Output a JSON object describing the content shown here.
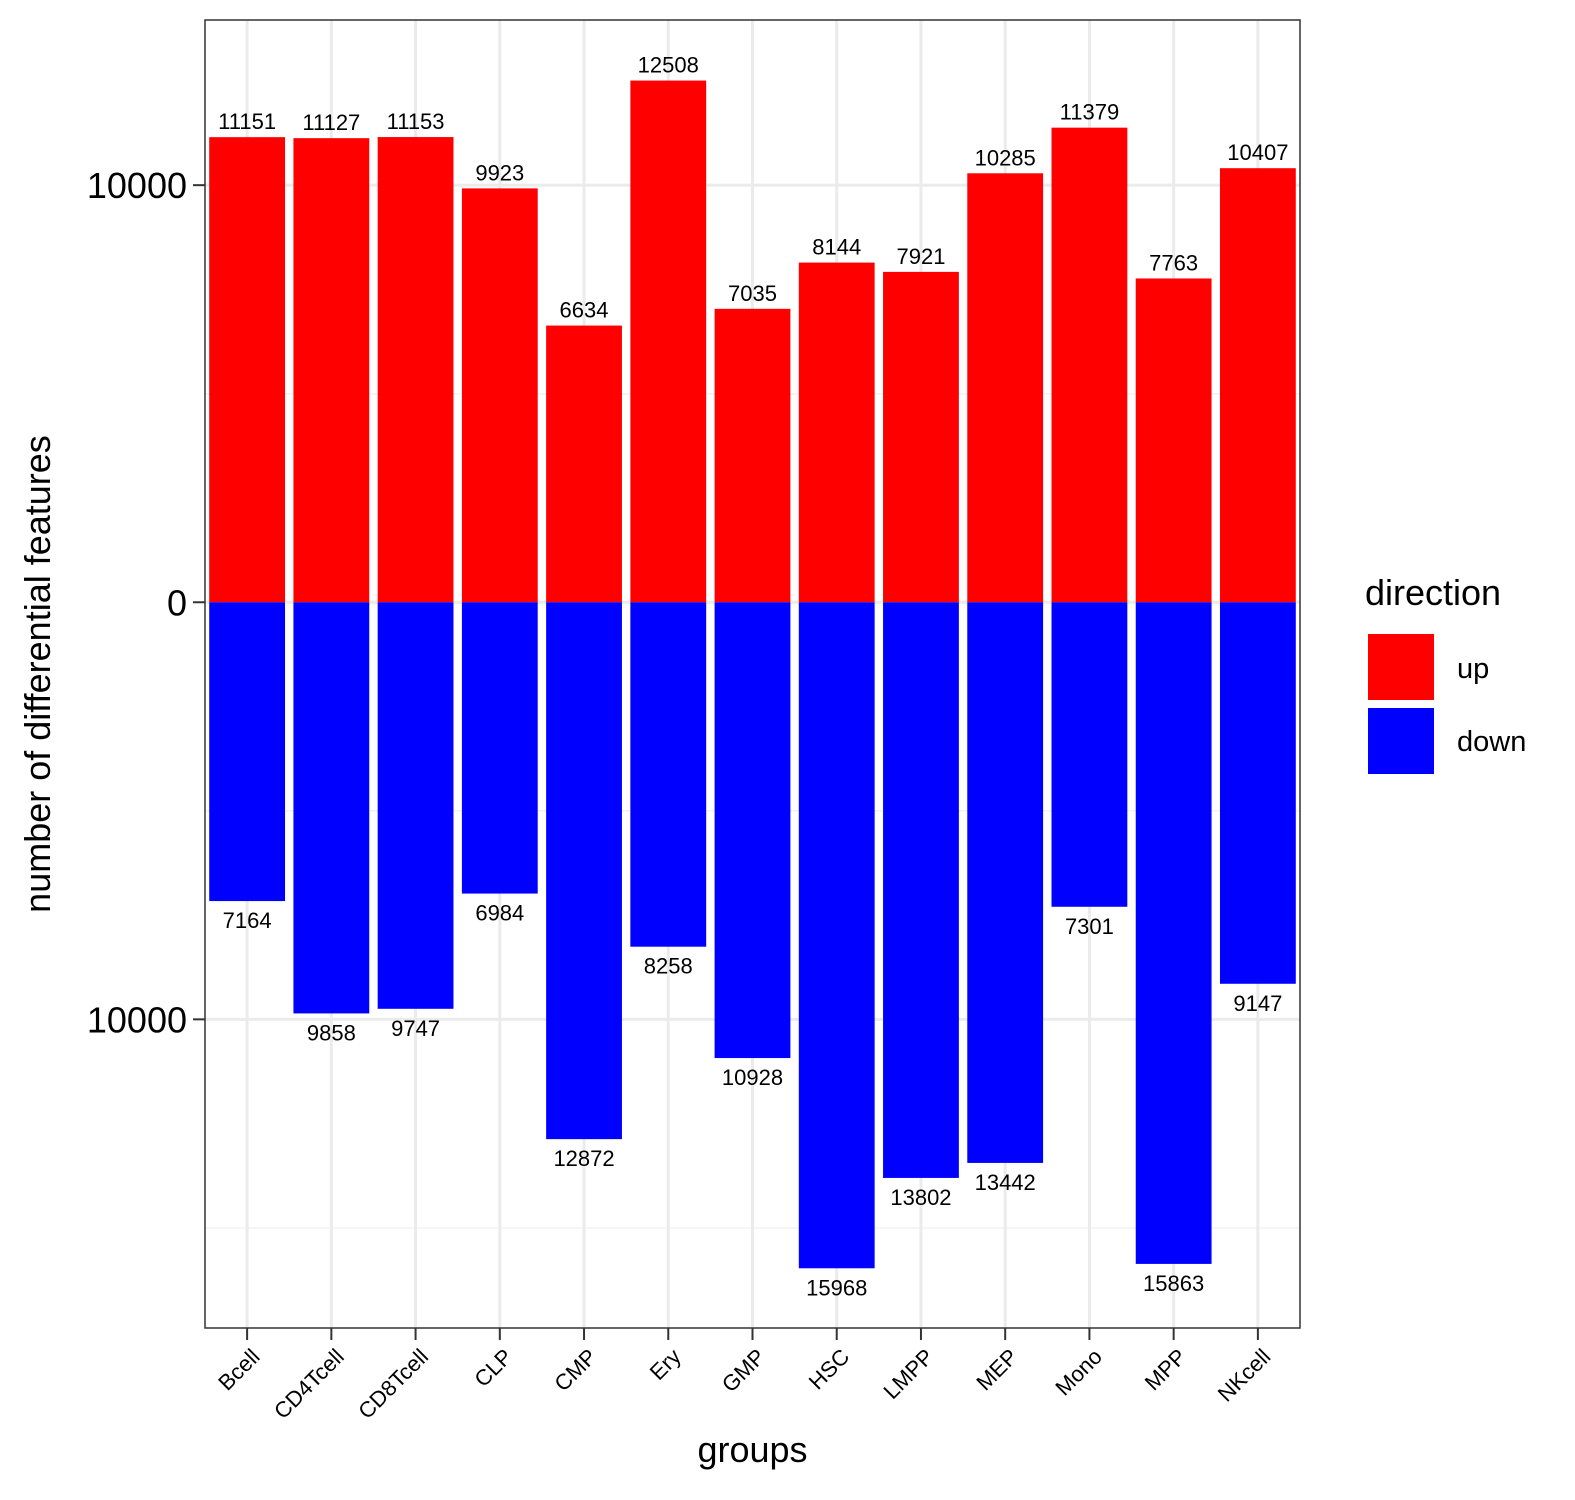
{
  "chart_data": {
    "type": "bar",
    "diverging": true,
    "title": "",
    "xlabel": "groups",
    "ylabel": "number of differential features",
    "categories": [
      "Bcell",
      "CD4Tcell",
      "CD8Tcell",
      "CLP",
      "CMP",
      "Ery",
      "GMP",
      "HSC",
      "LMPP",
      "MEP",
      "Mono",
      "MPP",
      "NKcell"
    ],
    "series": [
      {
        "name": "up",
        "color": "#ff0000",
        "direction": "positive",
        "values": [
          11151,
          11127,
          11153,
          9923,
          6634,
          12508,
          7035,
          8144,
          7921,
          10285,
          11379,
          7763,
          10407
        ]
      },
      {
        "name": "down",
        "color": "#0000ff",
        "direction": "negative",
        "values": [
          7164,
          9858,
          9747,
          6984,
          12872,
          8258,
          10928,
          15968,
          13802,
          13442,
          7301,
          15863,
          9147
        ]
      }
    ],
    "ylim": [
      -17400,
      13960
    ],
    "yticks": [
      {
        "value": 10000,
        "label": "10000"
      },
      {
        "value": 0,
        "label": "0"
      },
      {
        "value": -10000,
        "label": "10000"
      }
    ],
    "minor_gridlines": [
      5000,
      -5000,
      -15000
    ],
    "grid": true,
    "legend": {
      "title": "direction",
      "position": "right",
      "entries": [
        "up",
        "down"
      ]
    }
  }
}
